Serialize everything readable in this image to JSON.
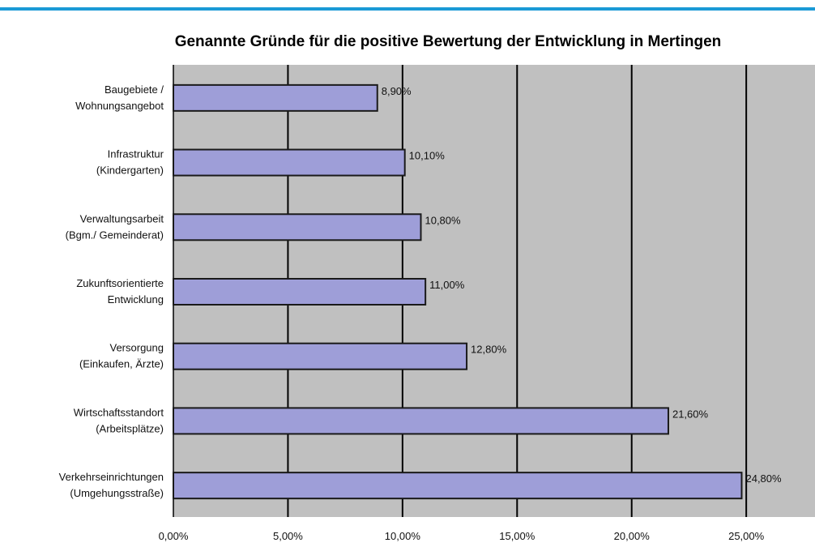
{
  "chart_data": {
    "type": "bar",
    "orientation": "horizontal",
    "title": "Genannte Gründe für die positive Bewertung der Entwicklung in Mertingen",
    "categories": [
      [
        "Baugebiete /",
        "Wohnungsangebot"
      ],
      [
        "Infrastruktur",
        "(Kindergarten)"
      ],
      [
        "Verwaltungsarbeit",
        "(Bgm./ Gemeinderat)"
      ],
      [
        "Zukunftsorientierte",
        "Entwicklung"
      ],
      [
        "Versorgung",
        "(Einkaufen, Ärzte)"
      ],
      [
        "Wirtschaftsstandort",
        "(Arbeitsplätze)"
      ],
      [
        "Verkehrseinrichtungen",
        "(Umgehungsstraße)"
      ]
    ],
    "values": [
      8.9,
      10.1,
      10.8,
      11.0,
      12.8,
      21.6,
      24.8
    ],
    "data_labels": [
      "8,90%",
      "10,10%",
      "10,80%",
      "11,00%",
      "12,80%",
      "21,60%",
      "24,80%"
    ],
    "xlim": [
      0,
      28
    ],
    "xticks": [
      0,
      5,
      10,
      15,
      20,
      25
    ],
    "xtick_labels": [
      "0,00%",
      "5,00%",
      "10,00%",
      "15,00%",
      "20,00%",
      "25,00%"
    ],
    "grid": true,
    "legend": "none",
    "colors": {
      "bar_fill": "#9e9ed8",
      "bar_stroke": "#1a1a1a",
      "plot_background": "#c0c0c0",
      "gridline": "#000000",
      "header_rule": "#1b9ad6"
    }
  }
}
